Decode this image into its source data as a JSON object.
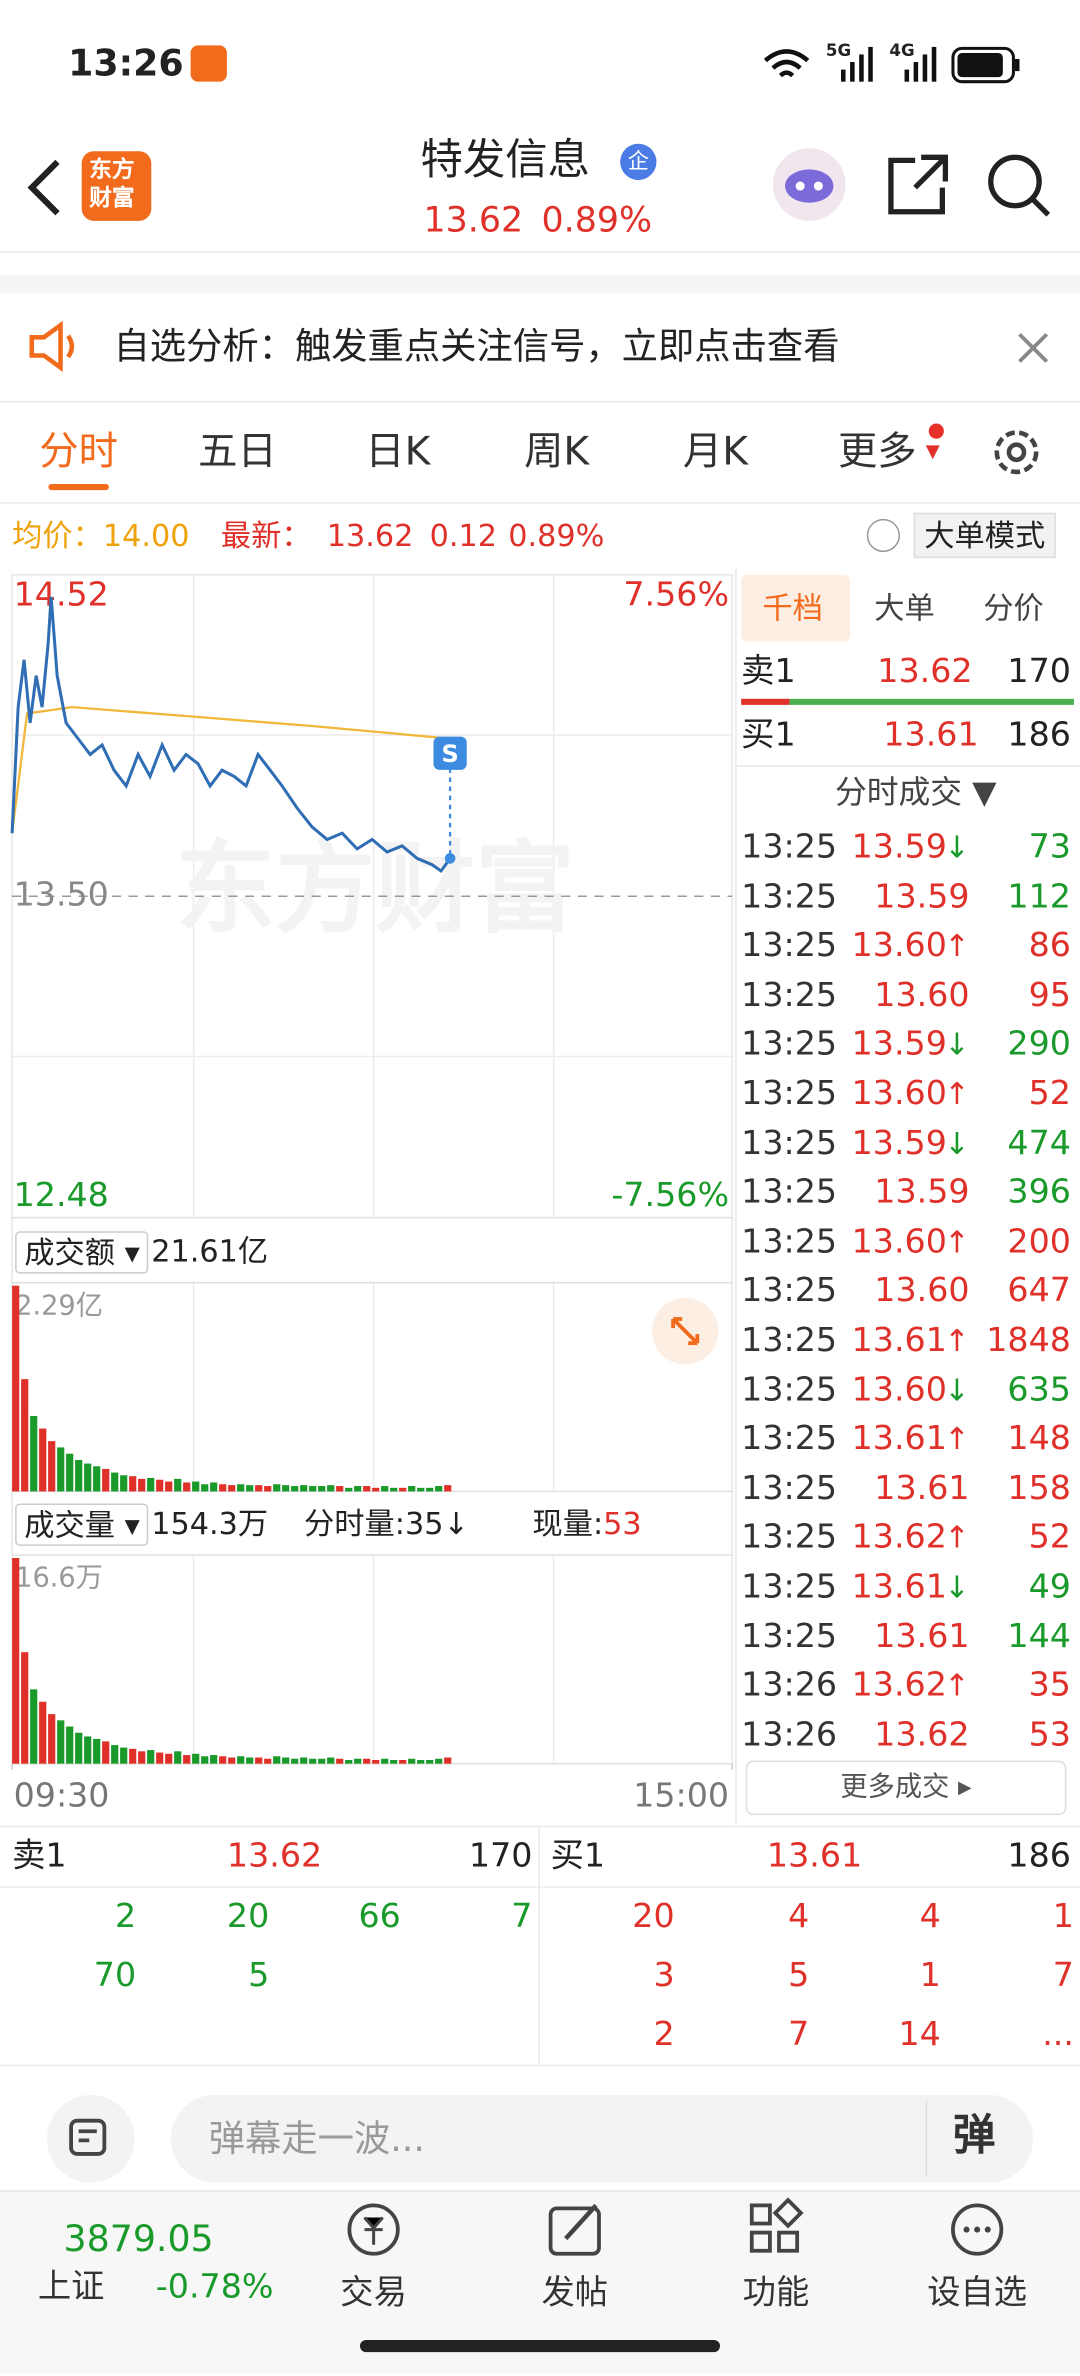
{
  "status_bar": {
    "time": "13:26",
    "net1": "5G",
    "net2": "4G"
  },
  "header": {
    "logo": [
      "东方",
      "财富"
    ],
    "title": "特发信息",
    "badge": "企",
    "price": "13.62",
    "change": "0.89%"
  },
  "notice": "自选分析：触发重点关注信号，立即点击查看",
  "tabs": [
    "分时",
    "五日",
    "日K",
    "周K",
    "月K",
    "更多"
  ],
  "info": {
    "avg_label": "均价：",
    "avg": "14.00",
    "last_label": "最新：",
    "last": "13.62",
    "diff": "0.12",
    "pct": "0.89%",
    "mode": "大单模式"
  },
  "chart_data": [
    {
      "type": "line",
      "watermark": "东方财富",
      "marker": "S",
      "right_labels": [
        "7.56%",
        "-7.56%"
      ],
      "xlim": [
        0,
        240
      ],
      "xticks": [
        {
          "value": 0,
          "label": "09:30"
        },
        {
          "value": 240,
          "label": "15:00"
        }
      ],
      "ylim": [
        12.48,
        14.52
      ],
      "yticks": [
        14.52,
        {
          "value": 13.5,
          "label": "13.50"
        },
        12.48
      ],
      "series": [
        {
          "color": "#2f6db5",
          "x": [
            0,
            2,
            4,
            6,
            8,
            10,
            12,
            13,
            15,
            18,
            22,
            26,
            30,
            34,
            38,
            42,
            46,
            50,
            54,
            58,
            62,
            66,
            70,
            74,
            78,
            82,
            86,
            90,
            95,
            100,
            105,
            110,
            115,
            120,
            125,
            130,
            135,
            140,
            143,
            146
          ],
          "values": [
            13.7,
            14.1,
            14.25,
            14.05,
            14.2,
            14.1,
            14.3,
            14.45,
            14.2,
            14.05,
            14.0,
            13.95,
            13.98,
            13.9,
            13.85,
            13.95,
            13.88,
            13.98,
            13.9,
            13.95,
            13.92,
            13.85,
            13.9,
            13.88,
            13.85,
            13.95,
            13.9,
            13.85,
            13.78,
            13.72,
            13.68,
            13.7,
            13.65,
            13.68,
            13.64,
            13.66,
            13.62,
            13.6,
            13.58,
            13.62
          ]
        },
        {
          "color": "#f0b73a",
          "x": [
            0,
            5,
            20,
            60,
            100,
            146
          ],
          "values": [
            13.7,
            14.08,
            14.1,
            14.07,
            14.04,
            14.0
          ]
        }
      ]
    },
    {
      "type": "bar",
      "title": "成交额",
      "total": "21.61亿",
      "ylim": [
        0,
        2.29
      ],
      "yticks": [
        {
          "value": 2.29,
          "label": "2.29亿"
        }
      ],
      "x": [
        0,
        3,
        6,
        9,
        12,
        15,
        18,
        21,
        24,
        27,
        30,
        33,
        36,
        39,
        42,
        45,
        48,
        51,
        54,
        57,
        60,
        63,
        66,
        69,
        72,
        75,
        78,
        81,
        84,
        87,
        90,
        93,
        96,
        99,
        102,
        105,
        108,
        111,
        114,
        117,
        120,
        123,
        126,
        129,
        132,
        135,
        138,
        141,
        144
      ],
      "values": [
        2.29,
        1.25,
        0.84,
        0.7,
        0.56,
        0.49,
        0.42,
        0.35,
        0.31,
        0.28,
        0.25,
        0.21,
        0.18,
        0.17,
        0.14,
        0.15,
        0.13,
        0.11,
        0.14,
        0.1,
        0.11,
        0.08,
        0.1,
        0.08,
        0.07,
        0.08,
        0.07,
        0.07,
        0.06,
        0.08,
        0.07,
        0.06,
        0.07,
        0.06,
        0.06,
        0.07,
        0.06,
        0.04,
        0.06,
        0.06,
        0.04,
        0.06,
        0.04,
        0.04,
        0.06,
        0.04,
        0.04,
        0.06,
        0.07
      ]
    },
    {
      "type": "bar",
      "title": "成交量",
      "total": "154.3万",
      "minute_label": "分时量:",
      "minute_value": "35",
      "minute_arrow": "↓",
      "now_label": "现量:",
      "now_value": "53",
      "ylim": [
        0,
        16.6
      ],
      "yticks": [
        {
          "value": 16.6,
          "label": "16.6万"
        }
      ],
      "x": [
        0,
        3,
        6,
        9,
        12,
        15,
        18,
        21,
        24,
        27,
        30,
        33,
        36,
        39,
        42,
        45,
        48,
        51,
        54,
        57,
        60,
        63,
        66,
        69,
        72,
        75,
        78,
        81,
        84,
        87,
        90,
        93,
        96,
        99,
        102,
        105,
        108,
        111,
        114,
        117,
        120,
        123,
        126,
        129,
        132,
        135,
        138,
        141,
        144
      ],
      "values": [
        16.6,
        9,
        6,
        5,
        4,
        3.5,
        3,
        2.5,
        2.2,
        2,
        1.8,
        1.5,
        1.3,
        1.2,
        1.0,
        1.1,
        0.9,
        0.8,
        1.0,
        0.7,
        0.8,
        0.6,
        0.7,
        0.6,
        0.5,
        0.6,
        0.5,
        0.5,
        0.4,
        0.6,
        0.5,
        0.4,
        0.5,
        0.4,
        0.4,
        0.5,
        0.4,
        0.3,
        0.4,
        0.4,
        0.3,
        0.4,
        0.3,
        0.3,
        0.4,
        0.3,
        0.3,
        0.4,
        0.5
      ]
    }
  ],
  "book": {
    "tabs": [
      "千档",
      "大单",
      "分价"
    ],
    "sell1": {
      "label": "卖1",
      "price": "13.62",
      "volume": "170"
    },
    "buy1": {
      "label": "买1",
      "price": "13.61",
      "volume": "186"
    },
    "trades_title": "分时成交 ▼",
    "trades": [
      {
        "time": "13:25",
        "price": "13.59",
        "arrow": "↓",
        "volume": "73",
        "color": "green"
      },
      {
        "time": "13:25",
        "price": "13.59",
        "volume": "112",
        "color": "green"
      },
      {
        "time": "13:25",
        "price": "13.60",
        "arrow": "↑",
        "volume": "86",
        "color": "red"
      },
      {
        "time": "13:25",
        "price": "13.60",
        "volume": "95",
        "color": "red"
      },
      {
        "time": "13:25",
        "price": "13.59",
        "arrow": "↓",
        "volume": "290",
        "color": "green"
      },
      {
        "time": "13:25",
        "price": "13.60",
        "arrow": "↑",
        "volume": "52",
        "color": "red"
      },
      {
        "time": "13:25",
        "price": "13.59",
        "arrow": "↓",
        "volume": "474",
        "color": "green"
      },
      {
        "time": "13:25",
        "price": "13.59",
        "volume": "396",
        "color": "green"
      },
      {
        "time": "13:25",
        "price": "13.60",
        "arrow": "↑",
        "volume": "200",
        "color": "red"
      },
      {
        "time": "13:25",
        "price": "13.60",
        "volume": "647",
        "color": "red"
      },
      {
        "time": "13:25",
        "price": "13.61",
        "arrow": "↑",
        "volume": "1848",
        "color": "red"
      },
      {
        "time": "13:25",
        "price": "13.60",
        "arrow": "↓",
        "volume": "635",
        "color": "green"
      },
      {
        "time": "13:25",
        "price": "13.61",
        "arrow": "↑",
        "volume": "148",
        "color": "red"
      },
      {
        "time": "13:25",
        "price": "13.61",
        "volume": "158",
        "color": "red"
      },
      {
        "time": "13:25",
        "price": "13.62",
        "arrow": "↑",
        "volume": "52",
        "color": "red"
      },
      {
        "time": "13:25",
        "price": "13.61",
        "arrow": "↓",
        "volume": "49",
        "color": "green"
      },
      {
        "time": "13:25",
        "price": "13.61",
        "volume": "144",
        "color": "green"
      },
      {
        "time": "13:26",
        "price": "13.62",
        "arrow": "↑",
        "volume": "35",
        "color": "red"
      },
      {
        "time": "13:26",
        "price": "13.62",
        "volume": "53",
        "color": "red"
      }
    ],
    "more": "更多成交 ▸"
  },
  "queue": {
    "sell_label": "卖1",
    "sell_price": "13.62",
    "sell_volume": "170",
    "buy_label": "买1",
    "buy_price": "13.61",
    "buy_volume": "186",
    "sell": [
      [
        2,
        20,
        66,
        7
      ],
      [
        70,
        5
      ]
    ],
    "buy": [
      [
        20,
        4,
        4,
        1
      ],
      [
        3,
        5,
        1,
        7
      ],
      [
        2,
        7,
        14,
        "..."
      ]
    ]
  },
  "comment": {
    "placeholder": "弹幕走一波...",
    "button": "弹"
  },
  "nav": {
    "index_value": "3879.05",
    "index_name": "上证",
    "index_change": "-0.78%",
    "items": [
      "交易",
      "发帖",
      "功能",
      "设自选"
    ]
  }
}
